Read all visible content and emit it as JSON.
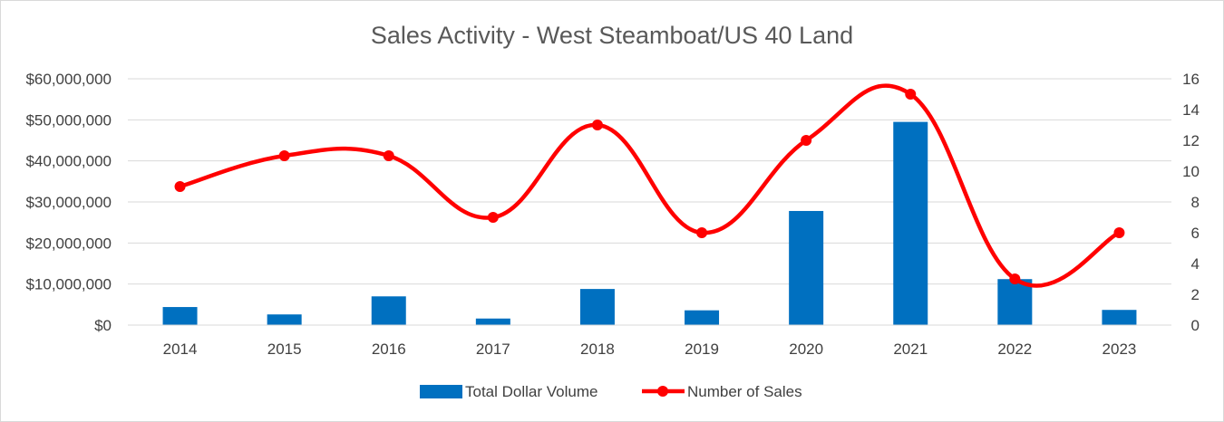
{
  "chart_data": {
    "type": "bar+line",
    "title": "Sales Activity - West Steamboat/US 40 Land",
    "categories": [
      "2014",
      "2015",
      "2016",
      "2017",
      "2018",
      "2019",
      "2020",
      "2021",
      "2022",
      "2023"
    ],
    "series": [
      {
        "name": "Total Dollar Volume",
        "type": "bar",
        "axis": "left",
        "color": "#0070C0",
        "values": [
          4400000,
          2600000,
          7000000,
          1600000,
          8800000,
          3600000,
          27800000,
          49500000,
          11200000,
          3700000
        ]
      },
      {
        "name": "Number of Sales",
        "type": "line",
        "smooth": true,
        "axis": "right",
        "color": "#FF0000",
        "values": [
          9,
          11,
          11,
          7,
          13,
          6,
          12,
          15,
          3,
          6
        ]
      }
    ],
    "y_left": {
      "ylim": [
        0,
        60000000
      ],
      "ticks": [
        0,
        10000000,
        20000000,
        30000000,
        40000000,
        50000000,
        60000000
      ],
      "tick_labels": [
        "$0",
        "$10,000,000",
        "$20,000,000",
        "$30,000,000",
        "$40,000,000",
        "$50,000,000",
        "$60,000,000"
      ]
    },
    "y_right": {
      "ylim": [
        0,
        16
      ],
      "ticks": [
        0,
        2,
        4,
        6,
        8,
        10,
        12,
        14,
        16
      ],
      "tick_labels": [
        "0",
        "2",
        "4",
        "6",
        "8",
        "10",
        "12",
        "14",
        "16"
      ]
    },
    "grid": true,
    "legend": "bottom-center",
    "legend_labels": [
      "Total Dollar Volume",
      "Number of Sales"
    ]
  }
}
